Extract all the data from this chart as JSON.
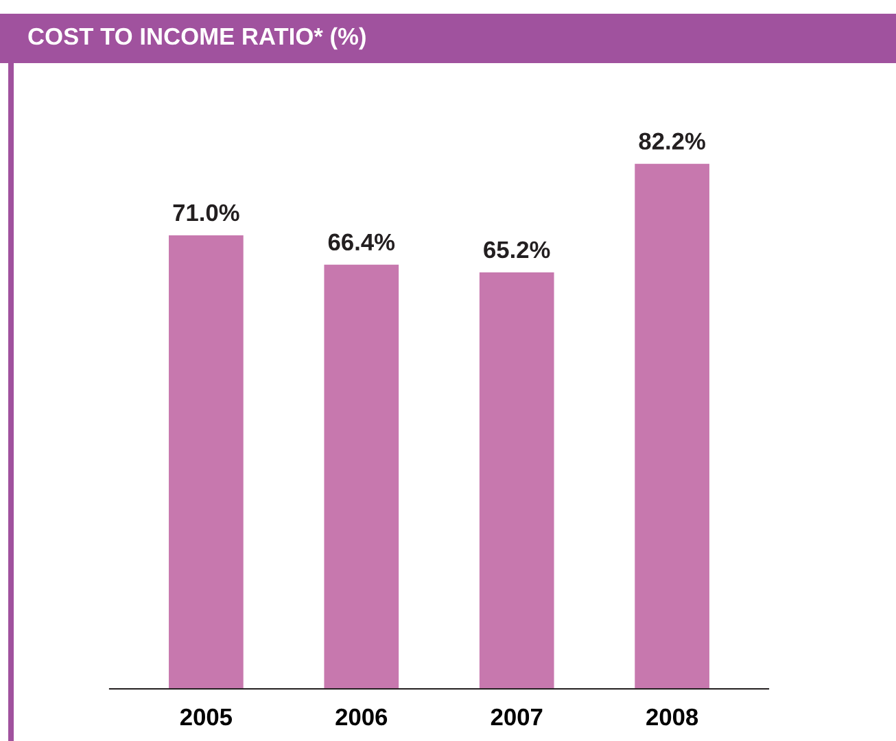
{
  "chart_data": {
    "type": "bar",
    "title": "COST TO INCOME RATIO* (%)",
    "categories": [
      "2005",
      "2006",
      "2007",
      "2008"
    ],
    "values": [
      71.0,
      66.4,
      65.2,
      82.2
    ],
    "value_labels": [
      "71.0%",
      "66.4%",
      "65.2%",
      "82.2%"
    ],
    "color": "#c778ae",
    "grid": false,
    "legend": false
  }
}
